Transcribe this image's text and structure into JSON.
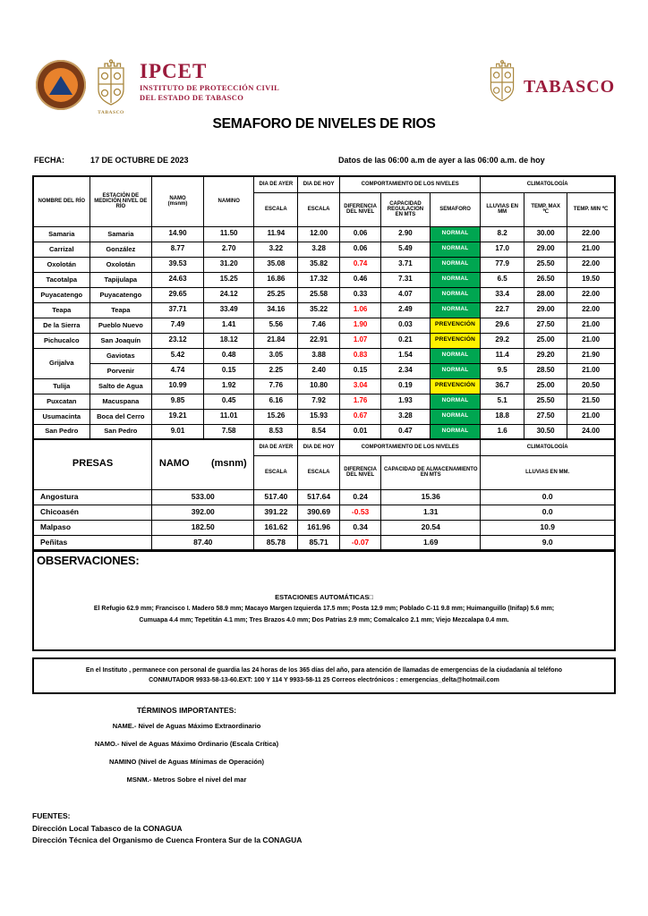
{
  "branding": {
    "ipcet_acronym": "IPCET",
    "ipcet_line1": "INSTITUTO DE PROTECCIÓN CIVIL",
    "ipcet_line2": "DEL ESTADO DE TABASCO",
    "tabasco_wordmark": "TABASCO",
    "left_emblem_caption": "TABASCO",
    "colors": {
      "maroon": "#9b1b3c",
      "gold": "#a9863c",
      "emblem_orange": "#e8822c",
      "emblem_navy": "#1b3e7a",
      "normal_green": "#00a651",
      "prevencion_yellow": "#fff200",
      "alert_red": "#ff0000"
    }
  },
  "title": "SEMAFORO DE NIVELES DE RIOS",
  "fecha": {
    "label": "FECHA:",
    "value": "17 DE OCTUBRE DE 2023",
    "nota": "Datos de las 06:00 a.m de ayer a las 06:00 a.m. de hoy"
  },
  "rivers_table": {
    "headers": {
      "rio": "NOMBRE DEL RÍO",
      "estacion": "ESTACIÓN DE\nMEDICIÓN NIVEL DE\nRÍO",
      "namo": "NAMO\n(msnm)",
      "namino": "NAMINO",
      "dia_ayer": "DIA DE AYER",
      "dia_hoy": "DIA DE HOY",
      "escala": "ESCALA",
      "comportamiento": "COMPORTAMIENTO DE LOS NIVELES",
      "diferencia": "DIFERENCIA\nDEL NIVEL",
      "capacidad": "CAPACIDAD\nREGULACION\nEN MTS",
      "semaforo": "SEMAFORO",
      "climatologia": "CLIMATOLOGÍA",
      "lluvias": "LLUVIAS EN\nMM",
      "temp_max": "TEMP. MAX\n℃",
      "temp_min": "TEMP.  MIN ℃"
    },
    "rows": [
      {
        "rio": "Samaria",
        "estacion": "Samaria",
        "namo": "14.90",
        "namino": "11.50",
        "ayer": "11.94",
        "hoy": "12.00",
        "dif": "0.06",
        "dif_red": false,
        "cap": "2.90",
        "sem": "NORMAL",
        "lluvia": "8.2",
        "tmax": "30.00",
        "tmin": "22.00"
      },
      {
        "rio": "Carrizal",
        "estacion": "González",
        "namo": "8.77",
        "namino": "2.70",
        "ayer": "3.22",
        "hoy": "3.28",
        "dif": "0.06",
        "dif_red": false,
        "cap": "5.49",
        "sem": "NORMAL",
        "lluvia": "17.0",
        "tmax": "29.00",
        "tmin": "21.00"
      },
      {
        "rio": "Oxolotán",
        "estacion": "Oxolotán",
        "namo": "39.53",
        "namino": "31.20",
        "ayer": "35.08",
        "hoy": "35.82",
        "dif": "0.74",
        "dif_red": true,
        "cap": "3.71",
        "sem": "NORMAL",
        "lluvia": "77.9",
        "tmax": "25.50",
        "tmin": "22.00"
      },
      {
        "rio": "Tacotalpa",
        "estacion": "Tapijulapa",
        "namo": "24.63",
        "namino": "15.25",
        "ayer": "16.86",
        "hoy": "17.32",
        "dif": "0.46",
        "dif_red": false,
        "cap": "7.31",
        "sem": "NORMAL",
        "lluvia": "6.5",
        "tmax": "26.50",
        "tmin": "19.50"
      },
      {
        "rio": "Puyacatengo",
        "estacion": "Puyacatengo",
        "namo": "29.65",
        "namino": "24.12",
        "ayer": "25.25",
        "hoy": "25.58",
        "dif": "0.33",
        "dif_red": false,
        "cap": "4.07",
        "sem": "NORMAL",
        "lluvia": "33.4",
        "tmax": "28.00",
        "tmin": "22.00"
      },
      {
        "rio": "Teapa",
        "estacion": "Teapa",
        "namo": "37.71",
        "namino": "33.49",
        "ayer": "34.16",
        "hoy": "35.22",
        "dif": "1.06",
        "dif_red": true,
        "cap": "2.49",
        "sem": "NORMAL",
        "lluvia": "22.7",
        "tmax": "29.00",
        "tmin": "22.00"
      },
      {
        "rio": "De la Sierra",
        "estacion": "Pueblo Nuevo",
        "namo": "7.49",
        "namino": "1.41",
        "ayer": "5.56",
        "hoy": "7.46",
        "dif": "1.90",
        "dif_red": true,
        "cap": "0.03",
        "sem": "PREVENCIÓN",
        "lluvia": "29.6",
        "tmax": "27.50",
        "tmin": "21.00"
      },
      {
        "rio": "Pichucalco",
        "estacion": "San Joaquín",
        "namo": "23.12",
        "namino": "18.12",
        "ayer": "21.84",
        "hoy": "22.91",
        "dif": "1.07",
        "dif_red": true,
        "cap": "0.21",
        "sem": "PREVENCIÓN",
        "lluvia": "29.2",
        "tmax": "25.00",
        "tmin": "21.00"
      },
      {
        "rio": "Grijalva",
        "rio_rowspan": 2,
        "estacion": "Gaviotas",
        "namo": "5.42",
        "namino": "0.48",
        "ayer": "3.05",
        "hoy": "3.88",
        "dif": "0.83",
        "dif_red": true,
        "cap": "1.54",
        "sem": "NORMAL",
        "lluvia": "11.4",
        "tmax": "29.20",
        "tmin": "21.90"
      },
      {
        "rio": null,
        "estacion": "Porvenir",
        "namo": "4.74",
        "namino": "0.15",
        "ayer": "2.25",
        "hoy": "2.40",
        "dif": "0.15",
        "dif_red": false,
        "cap": "2.34",
        "sem": "NORMAL",
        "lluvia": "9.5",
        "tmax": "28.50",
        "tmin": "21.00"
      },
      {
        "rio": "Tulija",
        "estacion": "Salto de Agua",
        "namo": "10.99",
        "namino": "1.92",
        "ayer": "7.76",
        "hoy": "10.80",
        "dif": "3.04",
        "dif_red": true,
        "cap": "0.19",
        "sem": "PREVENCIÓN",
        "lluvia": "36.7",
        "tmax": "25.00",
        "tmin": "20.50"
      },
      {
        "rio": "Puxcatan",
        "estacion": "Macuspana",
        "namo": "9.85",
        "namino": "0.45",
        "ayer": "6.16",
        "hoy": "7.92",
        "dif": "1.76",
        "dif_red": true,
        "cap": "1.93",
        "sem": "NORMAL",
        "lluvia": "5.1",
        "tmax": "25.50",
        "tmin": "21.50"
      },
      {
        "rio": "Usumacinta",
        "estacion": "Boca del Cerro",
        "namo": "19.21",
        "namino": "11.01",
        "ayer": "15.26",
        "hoy": "15.93",
        "dif": "0.67",
        "dif_red": true,
        "cap": "3.28",
        "sem": "NORMAL",
        "lluvia": "18.8",
        "tmax": "27.50",
        "tmin": "21.00"
      },
      {
        "rio": "San Pedro",
        "estacion": "San Pedro",
        "namo": "9.01",
        "namino": "7.58",
        "ayer": "8.53",
        "hoy": "8.54",
        "dif": "0.01",
        "dif_red": false,
        "cap": "0.47",
        "sem": "NORMAL",
        "lluvia": "1.6",
        "tmax": "30.50",
        "tmin": "24.00"
      }
    ]
  },
  "dams_table": {
    "headers": {
      "presas": "PRESAS",
      "namo": "NAMO        (msnm)",
      "dia_ayer": "DIA DE AYER",
      "dia_hoy": "DIA DE HOY",
      "escala": "ESCALA",
      "comportamiento": "COMPORTAMIENTO DE LOS NIVELES",
      "diferencia": "DIFERENCIA\nDEL NIVEL",
      "capacidad": "CAPACIDAD DE ALMACENAMIENTO\nEN MTS",
      "climatologia": "CLIMATOLOGÍA",
      "lluvias": "LLUVIAS EN MM."
    },
    "rows": [
      {
        "name": "Angostura",
        "namo": "533.00",
        "ayer": "517.40",
        "hoy": "517.64",
        "dif": "0.24",
        "dif_red": false,
        "cap": "15.36",
        "lluvia": "0.0"
      },
      {
        "name": "Chicoasén",
        "namo": "392.00",
        "ayer": "391.22",
        "hoy": "390.69",
        "dif": "-0.53",
        "dif_red": true,
        "cap": "1.31",
        "lluvia": "0.0"
      },
      {
        "name": "Malpaso",
        "namo": "182.50",
        "ayer": "161.62",
        "hoy": "161.96",
        "dif": "0.34",
        "dif_red": false,
        "cap": "20.54",
        "lluvia": "10.9"
      },
      {
        "name": "Peñitas",
        "namo": "87.40",
        "ayer": "85.78",
        "hoy": "85.71",
        "dif": "-0.07",
        "dif_red": true,
        "cap": "1.69",
        "lluvia": "9.0"
      }
    ]
  },
  "observaciones": {
    "label": "OBSERVACIONES:",
    "subtitle": "ESTACIONES AUTOMÁTICAS□",
    "line1": "El Refugio 62.9 mm; Francisco I. Madero 58.9 mm; Macayo Margen Izquierda 17.5 mm; Posta 12.9 mm; Poblado C-11 9.8 mm; Huimanguillo (Inifap)  5.6 mm;",
    "line2": "Cumuapa 4.4 mm; Tepetitán 4.1 mm; Tres Brazos 4.0 mm; Dos Patrias 2.9 mm; Comalcalco 2.1 mm; Viejo Mezcalapa 0.4 mm."
  },
  "instituto": {
    "line1": "En el Instituto , permanece con personal de guardia las 24 horas de los 365 días del año, para atención de llamadas de emergencias de la ciudadanía al teléfono",
    "line2": "CONMUTADOR  9933-58-13-60.EXT: 100 Y 114  Y 9933-58-11 25   Correos electrónicos : emergencias_delta@hotmail.com"
  },
  "terminos": {
    "title": "TÉRMINOS IMPORTANTES:",
    "items": [
      "NAME.-  Nivel de Aguas Máximo Extraordinario",
      "NAMO.-  Nivel de Aguas Máximo Ordinario (Escala Crítica)",
      "NAMINO (Nivel de Aguas Mínimas de Operación)",
      "MSNM.-  Metros Sobre el nivel del mar"
    ]
  },
  "fuentes": {
    "title": "FUENTES:",
    "lines": [
      "Dirección Local Tabasco de la CONAGUA",
      "Dirección Técnica del Organismo de Cuenca Frontera Sur de la CONAGUA"
    ]
  }
}
